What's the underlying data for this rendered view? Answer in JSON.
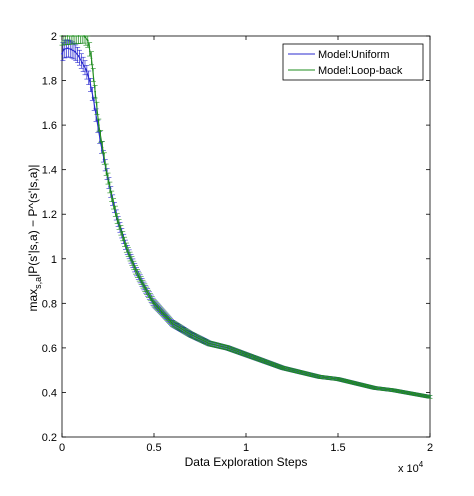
{
  "chart_data": {
    "type": "line",
    "title": "",
    "xlabel": "Data Exploration Steps",
    "ylabel_parts": {
      "max": "max",
      "sub": "s,a",
      "expr": "|P(s'|s,a) − P^(s'|s,a)|"
    },
    "x_exponent_note": {
      "base": "x 10",
      "exp": "4"
    },
    "xlim": [
      0,
      20000
    ],
    "ylim": [
      0.2,
      2.0
    ],
    "x_ticks": [
      0,
      5000,
      10000,
      15000,
      20000
    ],
    "x_tick_labels": [
      "0",
      "0.5",
      "1",
      "1.5",
      "2"
    ],
    "y_ticks": [
      0.2,
      0.4,
      0.6,
      0.8,
      1.0,
      1.2,
      1.4,
      1.6,
      1.8,
      2.0
    ],
    "y_tick_labels": [
      "0.2",
      "0.4",
      "0.6",
      "0.8",
      "1",
      "1.2",
      "1.4",
      "1.6",
      "1.8",
      "2"
    ],
    "grid": false,
    "legend_position": "top-right",
    "error_bars": true,
    "series": [
      {
        "name": "Model:Uniform",
        "color": "#2b2bcf",
        "x": [
          0,
          100,
          300,
          500,
          700,
          900,
          1100,
          1300,
          1500,
          1700,
          1900,
          2100,
          2400,
          2700,
          3000,
          3500,
          4000,
          4500,
          5000,
          6000,
          7000,
          8000,
          9000,
          10000,
          11000,
          12000,
          13000,
          14000,
          15000,
          16000,
          17000,
          18000,
          19000,
          20000
        ],
        "y": [
          1.92,
          1.94,
          1.945,
          1.94,
          1.93,
          1.91,
          1.88,
          1.85,
          1.8,
          1.72,
          1.62,
          1.52,
          1.4,
          1.28,
          1.18,
          1.05,
          0.95,
          0.87,
          0.8,
          0.71,
          0.66,
          0.62,
          0.6,
          0.57,
          0.54,
          0.51,
          0.49,
          0.47,
          0.46,
          0.44,
          0.42,
          0.41,
          0.395,
          0.38
        ]
      },
      {
        "name": "Model:Loop-back",
        "color": "#1f8c1f",
        "x": [
          0,
          300,
          600,
          900,
          1200,
          1400,
          1600,
          1800,
          2000,
          2200,
          2400,
          2700,
          3000,
          3500,
          4000,
          4500,
          5000,
          6000,
          7000,
          8000,
          9000,
          10000,
          11000,
          12000,
          13000,
          14000,
          15000,
          16000,
          17000,
          18000,
          19000,
          20000
        ],
        "y": [
          2.0,
          2.0,
          2.0,
          2.0,
          2.0,
          1.98,
          1.9,
          1.75,
          1.6,
          1.5,
          1.4,
          1.28,
          1.18,
          1.05,
          0.95,
          0.87,
          0.8,
          0.71,
          0.66,
          0.62,
          0.6,
          0.57,
          0.54,
          0.51,
          0.49,
          0.47,
          0.46,
          0.44,
          0.42,
          0.41,
          0.395,
          0.38
        ]
      }
    ]
  }
}
